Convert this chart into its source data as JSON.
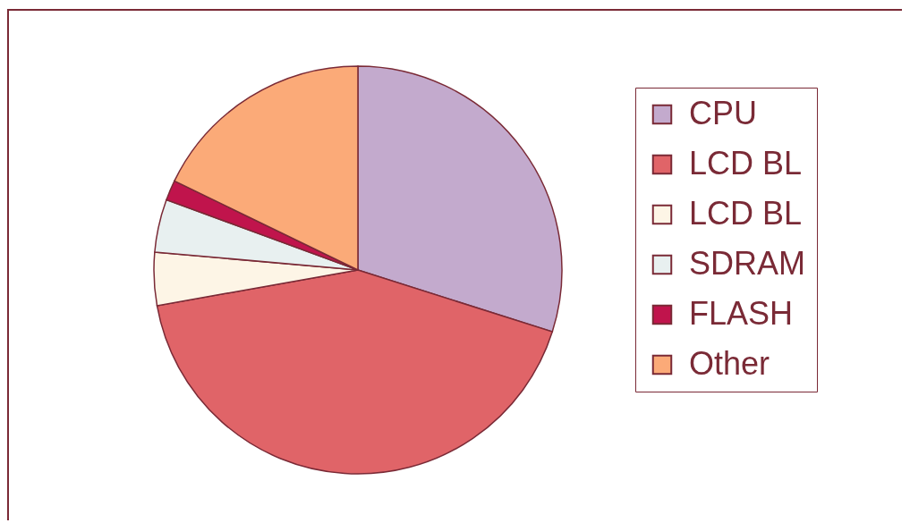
{
  "chart_data": {
    "type": "pie",
    "categories": [
      "CPU",
      "LCD BL",
      "LCD BL",
      "SDRAM",
      "FLASH",
      "Other"
    ],
    "values": [
      29.9,
      42.3,
      4.2,
      4.2,
      1.6,
      17.8
    ],
    "colors": [
      "#c3aacd",
      "#e06468",
      "#fdf5e6",
      "#e8f0f0",
      "#c0144c",
      "#fbaa78"
    ],
    "legend": "right"
  }
}
